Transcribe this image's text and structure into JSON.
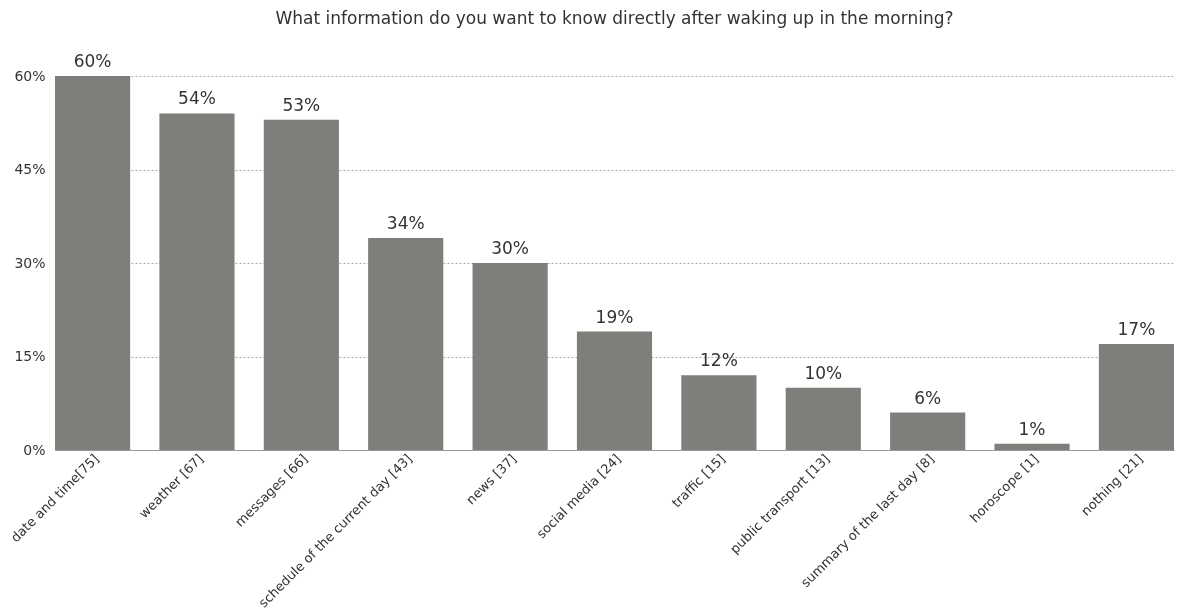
{
  "chart_data": {
    "type": "bar",
    "title": "What information do you want to know directly after waking up in the morning?",
    "categories": [
      "date and time[75]",
      "weather [67]",
      "messages [66]",
      "schedule of the current day [43]",
      "news [37]",
      "social media [24]",
      "traffic [15]",
      "public transport [13]",
      "summary of the last day [8]",
      "horoscope [1]",
      "nothing [21]"
    ],
    "values": [
      60,
      54,
      53,
      34,
      30,
      19,
      12,
      10,
      6,
      1,
      17
    ],
    "value_labels": [
      "60%",
      "54%",
      "53%",
      "34%",
      "30%",
      "19%",
      "12%",
      "10%",
      "6%",
      "1%",
      "17%"
    ],
    "color": "#7f7e7a",
    "ylim": [
      0,
      60
    ],
    "yticks": [
      {
        "value": 0,
        "label": "0%"
      },
      {
        "value": 15,
        "label": "15%"
      },
      {
        "value": 30,
        "label": "30%"
      },
      {
        "value": 45,
        "label": "45%"
      },
      {
        "value": 60,
        "label": "60%"
      }
    ],
    "grid": "y"
  }
}
